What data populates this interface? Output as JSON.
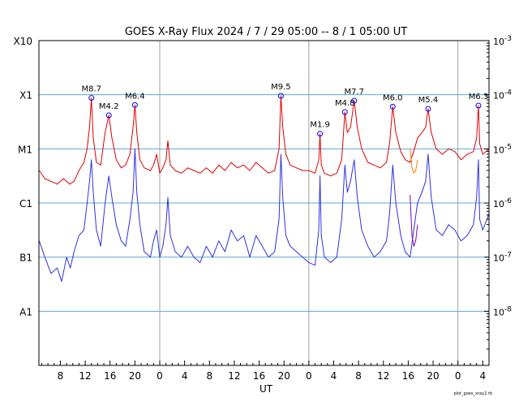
{
  "chart_data": {
    "type": "line",
    "title": "GOES X-Ray Flux   2024 /  7 / 29   05:00 --  8 /  1   05:00   UT",
    "xlabel": "UT",
    "credit": "plot_goes_xray2.rb",
    "x_range_hours": [
      -0.45,
      72.0
    ],
    "x_ticks": [
      {
        "h": 3,
        "label": "8"
      },
      {
        "h": 7,
        "label": "12"
      },
      {
        "h": 11,
        "label": "16"
      },
      {
        "h": 15,
        "label": "20"
      },
      {
        "h": 19,
        "label": "0"
      },
      {
        "h": 23,
        "label": "4"
      },
      {
        "h": 27,
        "label": "8"
      },
      {
        "h": 31,
        "label": "12"
      },
      {
        "h": 35,
        "label": "16"
      },
      {
        "h": 39,
        "label": "20"
      },
      {
        "h": 43,
        "label": "0"
      },
      {
        "h": 47,
        "label": "4"
      },
      {
        "h": 51,
        "label": "8"
      },
      {
        "h": 55,
        "label": "12"
      },
      {
        "h": 59,
        "label": "16"
      },
      {
        "h": 63,
        "label": "20"
      },
      {
        "h": 67,
        "label": "0"
      },
      {
        "h": 71,
        "label": "4"
      }
    ],
    "day_boundaries_hours": [
      19,
      43,
      67
    ],
    "y_scale": "log",
    "y_range_log10": [
      -9.0,
      -3.0
    ],
    "flare_classes": [
      {
        "label": "A1",
        "log10": -8
      },
      {
        "label": "B1",
        "log10": -7
      },
      {
        "label": "C1",
        "log10": -6
      },
      {
        "label": "M1",
        "log10": -5
      },
      {
        "label": "X1",
        "log10": -4
      },
      {
        "label": "X10",
        "log10": -3
      }
    ],
    "right_axis": [
      {
        "base": "10",
        "exp": "-3",
        "log10": -3
      },
      {
        "base": "10",
        "exp": "-4",
        "log10": -4
      },
      {
        "base": "10",
        "exp": "-5",
        "log10": -5
      },
      {
        "base": "10",
        "exp": "-6",
        "log10": -6
      },
      {
        "base": "10",
        "exp": "-7",
        "log10": -7
      },
      {
        "base": "10",
        "exp": "-8",
        "log10": -8
      }
    ],
    "colors": {
      "long": "#e00000",
      "short": "#3030e0",
      "long_alt": "#ff8000",
      "short_alt": "#8000c0",
      "class_lines": "#5aaad8",
      "day_lines": "#a0a0a0",
      "peak_marker": "#0000ff"
    },
    "flares": [
      {
        "label": "M8.7",
        "t_hours": 8.0,
        "log10": -4.06
      },
      {
        "label": "M4.2",
        "t_hours": 10.8,
        "log10": -4.38
      },
      {
        "label": "M6.4",
        "t_hours": 15.0,
        "log10": -4.19
      },
      {
        "label": "M9.5",
        "t_hours": 38.5,
        "log10": -4.02
      },
      {
        "label": "M1.9",
        "t_hours": 44.8,
        "log10": -4.72
      },
      {
        "label": "M4.8",
        "t_hours": 48.8,
        "log10": -4.32
      },
      {
        "label": "M7.7",
        "t_hours": 50.3,
        "log10": -4.11
      },
      {
        "label": "M6.0",
        "t_hours": 56.5,
        "log10": -4.22
      },
      {
        "label": "M5.4",
        "t_hours": 62.2,
        "log10": -4.26
      },
      {
        "label": "M6.3",
        "t_hours": 70.3,
        "log10": -4.2
      }
    ],
    "series": [
      {
        "key": "long",
        "x": [
          -0.4,
          0.5,
          1.5,
          2.5,
          3.5,
          4.5,
          5.2,
          6.0,
          6.8,
          7.3,
          7.7,
          8.0,
          8.3,
          8.8,
          9.5,
          10.2,
          10.8,
          11.3,
          12.0,
          12.8,
          13.5,
          14.2,
          14.7,
          15.0,
          15.3,
          15.8,
          16.5,
          17.5,
          18.0,
          18.5,
          19.0,
          19.5,
          20.0,
          20.3,
          20.7,
          21.5,
          22.5,
          23.5,
          24.5,
          25.5,
          26.5,
          27.5,
          28.5,
          29.5,
          30.5,
          31.5,
          32.5,
          33.5,
          34.5,
          35.5,
          36.5,
          37.5,
          38.2,
          38.5,
          38.8,
          39.3,
          40.0,
          41.0,
          42.0,
          43.0,
          44.0,
          44.6,
          44.8,
          45.0,
          45.5,
          46.5,
          47.5,
          48.3,
          48.8,
          49.2,
          49.7,
          50.3,
          50.8,
          51.5,
          52.5,
          53.5,
          54.5,
          55.5,
          56.0,
          56.5,
          57.0,
          57.8,
          58.5,
          59.3,
          60.0,
          60.5,
          61.2,
          61.8,
          62.2,
          62.7,
          63.5,
          64.5,
          65.5,
          66.5,
          67.5,
          68.5,
          69.5,
          70.0,
          70.3,
          70.5,
          71.0,
          72.0
        ],
        "log10": [
          -5.4,
          -5.55,
          -5.6,
          -5.65,
          -5.55,
          -5.65,
          -5.6,
          -5.4,
          -5.25,
          -5.0,
          -4.6,
          -4.06,
          -4.8,
          -5.25,
          -5.3,
          -4.7,
          -4.38,
          -4.8,
          -5.2,
          -5.35,
          -5.3,
          -5.1,
          -4.6,
          -4.19,
          -4.7,
          -5.2,
          -5.35,
          -5.4,
          -5.3,
          -5.1,
          -5.45,
          -5.35,
          -5.2,
          -4.85,
          -5.3,
          -5.4,
          -5.45,
          -5.35,
          -5.4,
          -5.45,
          -5.35,
          -5.45,
          -5.3,
          -5.4,
          -5.25,
          -5.35,
          -5.3,
          -5.4,
          -5.25,
          -5.35,
          -5.45,
          -5.4,
          -5.0,
          -4.02,
          -4.6,
          -5.1,
          -5.3,
          -5.35,
          -5.4,
          -5.4,
          -5.45,
          -5.2,
          -4.72,
          -5.3,
          -5.45,
          -5.5,
          -5.45,
          -5.2,
          -4.32,
          -4.7,
          -4.6,
          -4.11,
          -4.6,
          -5.0,
          -5.25,
          -5.3,
          -5.35,
          -5.25,
          -4.9,
          -4.22,
          -4.7,
          -5.05,
          -5.2,
          -5.25,
          -5.0,
          -4.8,
          -4.7,
          -4.6,
          -4.26,
          -4.7,
          -5.0,
          -5.1,
          -5.0,
          -5.05,
          -5.2,
          -5.1,
          -5.05,
          -4.8,
          -4.2,
          -4.9,
          -5.1,
          -5.0
        ]
      },
      {
        "key": "short",
        "x": [
          -0.4,
          0.5,
          1.5,
          2.5,
          3.2,
          4.0,
          4.6,
          5.2,
          6.0,
          6.8,
          7.3,
          7.7,
          8.0,
          8.3,
          8.8,
          9.5,
          10.2,
          10.8,
          11.3,
          12.0,
          12.8,
          13.5,
          14.2,
          14.7,
          15.0,
          15.3,
          15.8,
          16.5,
          17.5,
          18.0,
          18.5,
          19.0,
          19.5,
          20.0,
          20.3,
          20.7,
          21.5,
          22.5,
          23.5,
          24.5,
          25.5,
          26.5,
          27.5,
          28.5,
          29.5,
          30.5,
          31.5,
          32.5,
          33.5,
          34.5,
          35.5,
          36.5,
          37.5,
          38.2,
          38.5,
          38.8,
          39.3,
          40.0,
          41.0,
          42.0,
          43.0,
          44.0,
          44.6,
          44.8,
          45.0,
          45.5,
          46.5,
          47.5,
          48.3,
          48.8,
          49.2,
          49.7,
          50.3,
          50.8,
          51.5,
          52.5,
          53.5,
          54.5,
          55.5,
          56.0,
          56.5,
          57.0,
          57.8,
          58.5,
          59.3,
          60.0,
          60.5,
          61.2,
          61.8,
          62.2,
          62.7,
          63.5,
          64.5,
          65.5,
          66.5,
          67.5,
          68.5,
          69.5,
          70.0,
          70.3,
          70.5,
          71.0,
          72.0
        ],
        "log10": [
          -6.7,
          -7.0,
          -7.3,
          -7.2,
          -7.45,
          -7.0,
          -7.2,
          -6.9,
          -6.6,
          -6.5,
          -6.0,
          -5.6,
          -5.2,
          -5.8,
          -6.5,
          -6.8,
          -6.0,
          -5.5,
          -5.9,
          -6.4,
          -6.7,
          -6.8,
          -6.3,
          -5.8,
          -5.0,
          -5.8,
          -6.4,
          -6.9,
          -7.0,
          -6.7,
          -6.5,
          -7.0,
          -6.8,
          -6.4,
          -5.9,
          -6.6,
          -6.9,
          -7.0,
          -6.8,
          -7.0,
          -7.1,
          -6.8,
          -7.0,
          -6.7,
          -6.9,
          -6.5,
          -6.7,
          -6.6,
          -7.0,
          -6.6,
          -6.8,
          -7.0,
          -6.9,
          -6.3,
          -5.1,
          -5.9,
          -6.6,
          -6.8,
          -6.9,
          -7.0,
          -7.1,
          -7.15,
          -6.5,
          -5.5,
          -6.6,
          -7.0,
          -7.1,
          -7.0,
          -6.3,
          -5.3,
          -5.8,
          -5.6,
          -5.2,
          -5.9,
          -6.5,
          -6.8,
          -7.0,
          -6.9,
          -6.7,
          -6.2,
          -5.3,
          -6.0,
          -6.6,
          -6.9,
          -7.0,
          -6.4,
          -6.0,
          -5.8,
          -5.6,
          -5.1,
          -5.9,
          -6.5,
          -6.6,
          -6.4,
          -6.5,
          -6.7,
          -6.6,
          -6.4,
          -5.9,
          -5.2,
          -6.3,
          -6.5,
          -6.2
        ]
      },
      {
        "key": "long_alt",
        "x": [
          59.3,
          59.6,
          59.9,
          60.2,
          60.5
        ],
        "log10": [
          -5.0,
          -5.35,
          -5.45,
          -5.4,
          -5.2
        ]
      },
      {
        "key": "short_alt",
        "x": [
          59.3,
          59.6,
          59.9,
          60.2,
          60.5
        ],
        "log10": [
          -5.85,
          -6.6,
          -6.8,
          -6.7,
          -6.4
        ]
      }
    ]
  }
}
